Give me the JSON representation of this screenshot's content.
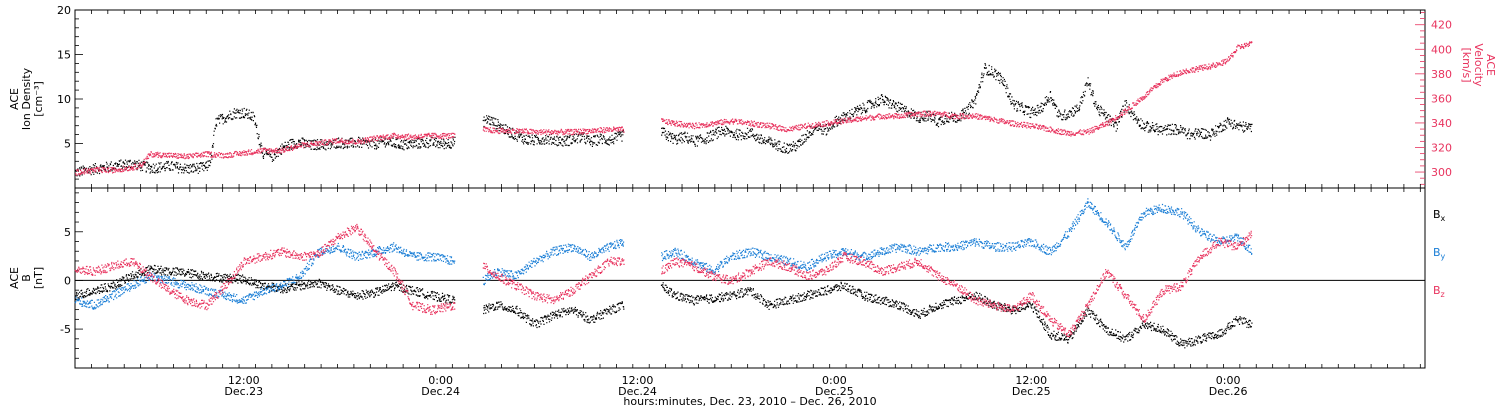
{
  "chart_data": [
    {
      "panel": "top",
      "type": "scatter",
      "ylabel_left": [
        "ACE",
        "Ion Density",
        "[cm⁻³]"
      ],
      "ylabel_right": [
        "ACE",
        "Velocity",
        "[km/s]"
      ],
      "y_left_range": [
        0,
        20
      ],
      "y_left_ticks": [
        5,
        10,
        15,
        20
      ],
      "y_right_range": [
        287,
        432
      ],
      "y_right_ticks": [
        300,
        320,
        340,
        360,
        380,
        400,
        420
      ],
      "series": [
        {
          "color": "#000000",
          "axis": "left",
          "segments": [
            {
              "t": [
                0,
                2,
                4,
                6,
                8,
                10,
                12,
                14,
                14.5,
                15,
                16,
                17,
                18,
                19,
                20,
                21,
                22,
                23,
                24,
                25,
                26,
                27,
                28,
                29,
                30,
                31,
                32,
                33,
                34,
                35,
                36,
                37,
                38,
                39,
                40.5
              ],
              "v": [
                1.8,
                2.2,
                2.5,
                2.8,
                2.3,
                2.5,
                2.2,
                2.4,
                3.5,
                7.5,
                8.0,
                8.5,
                8.5,
                8.0,
                4.0,
                3.6,
                4.5,
                5.0,
                5.2,
                4.8,
                5.0,
                4.8,
                5.2,
                5.0,
                5.2,
                5.0,
                5.0,
                5.3,
                5.1,
                4.9,
                5.0,
                5.1,
                5.2,
                5.0,
                5.2
              ]
            },
            {
              "t": [
                43.5,
                44,
                45,
                46,
                47,
                48,
                49,
                50,
                51,
                52,
                53,
                54,
                55,
                56,
                57,
                58.5
              ],
              "v": [
                7.5,
                7.8,
                7.2,
                6.5,
                6.0,
                5.5,
                5.4,
                5.6,
                5.5,
                5.3,
                5.5,
                5.8,
                5.2,
                5.6,
                5.4,
                6.0
              ]
            },
            {
              "t": [
                62.5,
                63,
                64,
                65,
                66,
                67,
                68,
                69,
                70,
                71,
                72,
                73,
                74,
                75,
                76,
                77,
                78,
                79,
                80,
                81,
                82,
                83,
                84,
                85,
                86,
                87,
                88,
                89,
                90,
                91,
                92,
                93,
                94,
                95,
                96,
                97,
                98,
                99,
                100,
                101,
                102,
                103,
                104,
                105,
                106,
                107,
                108,
                109,
                110,
                111,
                112,
                113,
                114,
                115,
                116,
                117,
                118,
                119,
                120,
                121,
                122,
                123,
                124,
                125.5
              ],
              "v": [
                6.5,
                6.0,
                5.5,
                5.8,
                5.3,
                5.5,
                6.0,
                6.5,
                6.2,
                6.0,
                6.3,
                5.5,
                5.2,
                4.8,
                4.5,
                4.8,
                6.0,
                7.0,
                6.5,
                7.5,
                8.0,
                8.5,
                9.0,
                9.5,
                10.0,
                9.5,
                9.0,
                8.5,
                8.0,
                8.2,
                7.5,
                8.0,
                8.0,
                8.5,
                10.0,
                13.5,
                13.0,
                12.0,
                9.5,
                9.0,
                8.5,
                9.0,
                10.5,
                8.0,
                8.5,
                9.0,
                12.0,
                9.0,
                8.0,
                7.0,
                9.5,
                8.0,
                7.0,
                6.8,
                6.5,
                6.7,
                6.5,
                6.0,
                6.3,
                6.0,
                6.8,
                7.5,
                7.0,
                6.8
              ]
            }
          ]
        },
        {
          "color": "#e8335e",
          "axis": "right",
          "segments": [
            {
              "t": [
                0,
                2,
                4,
                6,
                7,
                8,
                10,
                12,
                14,
                16,
                18,
                20,
                22,
                24,
                26,
                28,
                30,
                32,
                34,
                36,
                38,
                40.5
              ],
              "v": [
                300,
                302,
                302,
                304,
                306,
                315,
                314,
                313,
                315,
                314,
                316,
                318,
                318,
                322,
                324,
                326,
                325,
                328,
                330,
                329,
                330,
                330
              ]
            },
            {
              "t": [
                43.5,
                45,
                47,
                49,
                51,
                53,
                55,
                57,
                58.5
              ],
              "v": [
                335,
                334,
                334,
                333,
                333,
                333,
                334,
                335,
                335
              ]
            },
            {
              "t": [
                62.5,
                64,
                66,
                68,
                70,
                72,
                74,
                76,
                78,
                80,
                82,
                84,
                86,
                88,
                90,
                92,
                94,
                96,
                98,
                100,
                102,
                104,
                106,
                108,
                110,
                112,
                114,
                116,
                118,
                120,
                122,
                123,
                124,
                125.5
              ],
              "v": [
                342,
                340,
                338,
                340,
                342,
                340,
                338,
                335,
                338,
                340,
                342,
                344,
                346,
                346,
                348,
                348,
                346,
                346,
                343,
                340,
                338,
                335,
                332,
                333,
                340,
                350,
                362,
                375,
                382,
                385,
                388,
                392,
                402,
                405
              ]
            }
          ]
        }
      ]
    },
    {
      "panel": "bottom",
      "type": "scatter",
      "ylabel_left": [
        "ACE",
        "B",
        "[nT]"
      ],
      "y_range": [
        -9,
        9.5
      ],
      "y_ticks": [
        -5,
        0,
        5
      ],
      "legend": [
        {
          "label": "Bx",
          "color": "#000000"
        },
        {
          "label": "By",
          "color": "#1a7ed6"
        },
        {
          "label": "Bz",
          "color": "#e8335e"
        }
      ],
      "series": [
        {
          "name": "Bx",
          "color": "#000000",
          "segments": [
            {
              "t": [
                0,
                2,
                4,
                6,
                8,
                10,
                12,
                14,
                16,
                18,
                20,
                22,
                24,
                26,
                28,
                30,
                32,
                34,
                36,
                38,
                40.5
              ],
              "v": [
                -1.5,
                -1.0,
                -0.5,
                0.5,
                1.2,
                1.0,
                0.8,
                0.5,
                0.3,
                0.2,
                -0.5,
                -0.8,
                -0.5,
                -0.2,
                -1.0,
                -1.5,
                -1.2,
                -0.5,
                -1.0,
                -1.5,
                -2.0
              ]
            },
            {
              "t": [
                43.5,
                45,
                47,
                49,
                51,
                53,
                55,
                57,
                58.5
              ],
              "v": [
                -3.0,
                -2.5,
                -3.0,
                -4.5,
                -3.5,
                -3.0,
                -4.0,
                -3.0,
                -2.5
              ]
            },
            {
              "t": [
                62.5,
                64,
                66,
                68,
                70,
                72,
                74,
                76,
                78,
                80,
                82,
                84,
                86,
                88,
                90,
                92,
                94,
                96,
                98,
                100,
                102,
                104,
                106,
                108,
                110,
                112,
                114,
                116,
                118,
                120,
                122,
                124,
                125.5
              ],
              "v": [
                -0.5,
                -1.5,
                -2.0,
                -1.8,
                -1.5,
                -1.0,
                -2.5,
                -2.0,
                -1.5,
                -1.0,
                -0.5,
                -1.5,
                -2.0,
                -2.5,
                -3.5,
                -2.5,
                -2.0,
                -1.5,
                -2.5,
                -3.0,
                -2.5,
                -5.5,
                -6.0,
                -3.0,
                -5.0,
                -6.0,
                -4.5,
                -5.0,
                -6.5,
                -6.0,
                -5.5,
                -4.0,
                -4.5
              ]
            }
          ]
        },
        {
          "name": "By",
          "color": "#1a7ed6",
          "segments": [
            {
              "t": [
                0,
                2,
                4,
                6,
                8,
                10,
                12,
                14,
                16,
                18,
                20,
                22,
                24,
                26,
                28,
                30,
                32,
                34,
                36,
                38,
                40.5
              ],
              "v": [
                -2.0,
                -2.5,
                -1.5,
                -0.5,
                0.5,
                0.0,
                -0.5,
                -1.0,
                -1.5,
                -2.0,
                -1.0,
                -0.5,
                0.5,
                3.0,
                3.5,
                2.5,
                3.0,
                3.5,
                2.5,
                2.5,
                2.0
              ]
            },
            {
              "t": [
                43.5,
                45,
                47,
                49,
                51,
                53,
                55,
                57,
                58.5
              ],
              "v": [
                0.0,
                1.0,
                0.5,
                2.0,
                3.0,
                3.5,
                2.5,
                3.5,
                4.0
              ]
            },
            {
              "t": [
                62.5,
                64,
                66,
                68,
                70,
                72,
                74,
                76,
                78,
                80,
                82,
                84,
                86,
                88,
                90,
                92,
                94,
                96,
                98,
                100,
                102,
                104,
                106,
                108,
                110,
                112,
                114,
                116,
                118,
                120,
                122,
                124,
                125.5
              ],
              "v": [
                2.5,
                3.0,
                2.0,
                1.0,
                2.5,
                3.0,
                2.5,
                2.0,
                1.5,
                2.5,
                3.0,
                2.5,
                3.0,
                3.5,
                3.0,
                3.5,
                3.5,
                4.0,
                3.5,
                3.5,
                4.0,
                3.0,
                5.0,
                8.0,
                6.0,
                3.5,
                7.0,
                7.5,
                7.0,
                5.0,
                4.0,
                4.5,
                3.0
              ]
            }
          ]
        },
        {
          "name": "Bz",
          "color": "#e8335e",
          "segments": [
            {
              "t": [
                0,
                2,
                4,
                6,
                8,
                10,
                12,
                14,
                16,
                18,
                20,
                22,
                24,
                26,
                28,
                30,
                32,
                34,
                36,
                38,
                40.5
              ],
              "v": [
                1.2,
                1.0,
                1.5,
                2.0,
                0.5,
                -1.0,
                -2.0,
                -2.5,
                -0.5,
                2.0,
                2.5,
                3.0,
                2.5,
                2.8,
                4.5,
                5.5,
                3.0,
                1.0,
                -2.5,
                -3.0,
                -2.5
              ]
            },
            {
              "t": [
                43.5,
                45,
                47,
                49,
                51,
                53,
                55,
                57,
                58.5
              ],
              "v": [
                1.5,
                0.5,
                -0.5,
                -1.5,
                -2.0,
                -1.0,
                0.5,
                2.0,
                2.0
              ]
            },
            {
              "t": [
                62.5,
                64,
                66,
                68,
                70,
                72,
                74,
                76,
                78,
                80,
                82,
                84,
                86,
                88,
                90,
                92,
                94,
                96,
                98,
                100,
                102,
                104,
                106,
                108,
                110,
                112,
                114,
                116,
                118,
                120,
                122,
                124,
                125.5
              ],
              "v": [
                1.0,
                2.0,
                1.5,
                0.5,
                0.0,
                1.0,
                2.0,
                1.5,
                0.5,
                1.0,
                2.5,
                2.0,
                1.0,
                1.5,
                2.0,
                0.5,
                -0.5,
                -2.0,
                -2.5,
                -3.0,
                -1.5,
                -4.0,
                -5.5,
                -2.5,
                1.0,
                -1.5,
                -4.0,
                -1.0,
                -0.5,
                2.5,
                4.0,
                3.5,
                5.0
              ]
            }
          ]
        }
      ]
    }
  ],
  "x_axis": {
    "range_hours": [
      0,
      144
    ],
    "ticks": [
      {
        "t": 18,
        "time": "12:00",
        "date": "Dec.23"
      },
      {
        "t": 39,
        "time": "0:00",
        "date": "Dec.24"
      },
      {
        "t": 60,
        "time": "12:00",
        "date": "Dec.24"
      },
      {
        "t": 81,
        "time": "0:00",
        "date": "Dec.25"
      },
      {
        "t": 102,
        "time": "12:00",
        "date": "Dec.25"
      },
      {
        "t": 123,
        "time": "0:00",
        "date": "Dec.26"
      }
    ],
    "xlabel": "hours:minutes, Dec. 23, 2010 – Dec. 26, 2010"
  }
}
